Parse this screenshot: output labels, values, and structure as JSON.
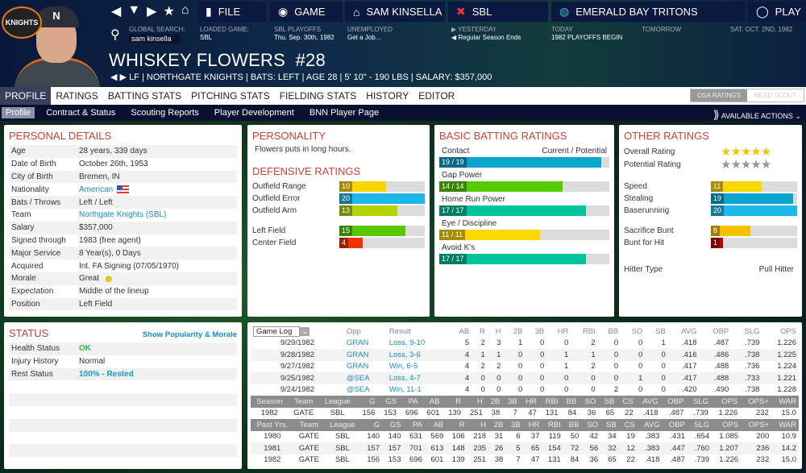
{
  "nav": {
    "file": "FILE",
    "game": "GAME",
    "manager": "SAM KINSELLA",
    "league": "SBL",
    "team": "EMERALD BAY TRITONS",
    "play": "PLAY"
  },
  "info": {
    "search_label": "GLOBAL SEARCH:",
    "search_value": "sam kinsella",
    "loaded_label": "LOADED GAME:",
    "loaded_value": "SBL",
    "playoffs_label": "SBL PLAYOFFS",
    "playoffs_date": "Thu. Sep. 30th, 1982",
    "unemployed_label": "UNEMPLOYED",
    "unemployed_value": "Get a Job...",
    "yesterday_label": "YESTERDAY",
    "yesterday_value": "Regular Season Ends",
    "today_label": "TODAY",
    "today_value": "1982 PLAYOFFS BEGIN",
    "tomorrow_label": "TOMORROW",
    "date": "SAT. OCT. 2ND, 1982"
  },
  "logo_text": "KNIGHTS",
  "cap_letter": "N",
  "player": {
    "name": "WHISKEY FLOWERS  #28",
    "sub": "LF | NORTHGATE KNIGHTS | BATS: LEFT | AGE 28 | 5' 10\" - 190 LBS | SALARY: $357,000"
  },
  "tabs": [
    "PROFILE",
    "RATINGS",
    "BATTING STATS",
    "PITCHING STATS",
    "FIELDING STATS",
    "HISTORY",
    "EDITOR"
  ],
  "rating_toggle": [
    "OSA RATINGS",
    "HEAD SCOUT"
  ],
  "subtabs": [
    "Profile",
    "Contract & Status",
    "Scouting Reports",
    "Player Development",
    "BNN Player Page"
  ],
  "available_actions": "AVAILABLE ACTIONS",
  "personal": {
    "title": "PERSONAL DETAILS",
    "rows": [
      [
        "Age",
        "28 years, 339 days"
      ],
      [
        "Date of Birth",
        "October 26th, 1953"
      ],
      [
        "City of Birth",
        "Bremen, IN"
      ],
      [
        "Nationality",
        "American"
      ],
      [
        "Bats / Throws",
        "Left / Left"
      ],
      [
        "Team",
        "Northgate Knights (SBL)"
      ],
      [
        "Salary",
        "$357,000"
      ],
      [
        "Signed through",
        "1983 (free agent)"
      ],
      [
        "Major Service",
        "8 Year(s), 0 Days"
      ],
      [
        "Acquired",
        "Int. FA Signing (07/05/1970)"
      ],
      [
        "Morale",
        "Great"
      ],
      [
        "Expectation",
        "Middle of the lineup"
      ],
      [
        "Position",
        "Left Field"
      ]
    ]
  },
  "personality": {
    "title": "PERSONALITY",
    "text": "Flowers puts in long hours."
  },
  "defensive": {
    "title": "DEFENSIVE RATINGS",
    "ratings": [
      {
        "label": "Outfield Range",
        "value": 10,
        "color": "#ffd500"
      },
      {
        "label": "Outfield Error",
        "value": 20,
        "color": "#1cb8e8"
      },
      {
        "label": "Outfield Arm",
        "value": 13,
        "color": "#b5d300"
      }
    ],
    "positions": [
      {
        "label": "Left Field",
        "value": 15,
        "color": "#55c800"
      },
      {
        "label": "Center Field",
        "value": 4,
        "color": "#f03200"
      }
    ]
  },
  "batting": {
    "title": "BASIC BATTING RATINGS",
    "header": "Current / Potential",
    "ratings": [
      {
        "label": "Contact",
        "text": "19 / 19",
        "value": 19,
        "color": "#0aa4cc"
      },
      {
        "label": "Gap Power",
        "text": "14 / 14",
        "value": 14,
        "color": "#55cc00"
      },
      {
        "label": "Home Run Power",
        "text": "17 / 17",
        "value": 17,
        "color": "#00c49c"
      },
      {
        "label": "Eye / Discipline",
        "text": "11 / 11",
        "value": 11,
        "color": "#ffd800"
      },
      {
        "label": "Avoid K's",
        "text": "17 / 17",
        "value": 17,
        "color": "#00c49c"
      }
    ]
  },
  "other": {
    "title": "OTHER RATINGS",
    "overall_label": "Overall Rating",
    "overall_stars": 5,
    "potential_label": "Potential Rating",
    "potential_stars": 0,
    "running": [
      {
        "label": "Speed",
        "value": 11,
        "color": "#ffd800"
      },
      {
        "label": "Stealing",
        "value": 19,
        "color": "#0aa4cc"
      },
      {
        "label": "Baserunning",
        "value": 20,
        "color": "#1cb8e8"
      }
    ],
    "bunting": [
      {
        "label": "Sacrifice Bunt",
        "value": 8,
        "color": "#f5c000"
      },
      {
        "label": "Bunt for Hit",
        "value": 1,
        "color": "#c00000"
      }
    ],
    "hitter_type_label": "Hitter Type",
    "hitter_type": "Pull Hitter"
  },
  "status": {
    "title": "STATUS",
    "link": "Show Popularity & Morale",
    "rows": [
      [
        "Health Status",
        "OK",
        "#2eb84a"
      ],
      [
        "Injury History",
        "Normal",
        "#333333"
      ],
      [
        "Rest Status",
        "100% - Rested",
        "#1a9ad0"
      ]
    ]
  },
  "gamelog": {
    "select": "Game Log",
    "headers": [
      "Opp",
      "Result",
      "AB",
      "R",
      "H",
      "2B",
      "3B",
      "HR",
      "RBI",
      "BB",
      "SO",
      "SB",
      "AVG",
      "OBP",
      "SLG",
      "OPS"
    ],
    "rows": [
      [
        "9/29/1982",
        "GRAN",
        "Loss, 9-10",
        "5",
        "2",
        "3",
        "1",
        "0",
        "0",
        "2",
        "0",
        "0",
        "1",
        ".418",
        ".487",
        ".739",
        "1.226"
      ],
      [
        "9/28/1982",
        "GRAN",
        "Loss, 3-6",
        "4",
        "1",
        "1",
        "0",
        "0",
        "1",
        "1",
        "0",
        "0",
        "0",
        ".416",
        ".486",
        ".738",
        "1.225"
      ],
      [
        "9/27/1982",
        "GRAN",
        "Win, 6-5",
        "4",
        "2",
        "2",
        "0",
        "0",
        "1",
        "2",
        "0",
        "0",
        "0",
        ".417",
        ".488",
        ".736",
        "1.224"
      ],
      [
        "9/25/1982",
        "@SEA",
        "Loss, 4-7",
        "4",
        "0",
        "0",
        "0",
        "0",
        "0",
        "0",
        "0",
        "1",
        "0",
        ".417",
        ".488",
        ".733",
        "1.221"
      ],
      [
        "9/24/1982",
        "@SEA",
        "Win, 11-1",
        "4",
        "0",
        "0",
        "0",
        "0",
        "0",
        "0",
        "2",
        "0",
        "0",
        ".420",
        ".490",
        ".738",
        "1.228"
      ]
    ]
  },
  "season": {
    "headers": [
      "Season",
      "Team",
      "League",
      "G",
      "GS",
      "PA",
      "AB",
      "R",
      "H",
      "2B",
      "3B",
      "HR",
      "RBI",
      "BB",
      "SO",
      "SB",
      "CS",
      "AVG",
      "OBP",
      "SLG",
      "OPS",
      "OPS+",
      "WAR"
    ],
    "rows": [
      [
        "1982",
        "GATE",
        "SBL",
        "156",
        "153",
        "696",
        "601",
        "139",
        "251",
        "38",
        "7",
        "47",
        "131",
        "84",
        "36",
        "65",
        "22",
        ".418",
        ".487",
        ".739",
        "1.226",
        "232",
        "15.0"
      ]
    ]
  },
  "past": {
    "headers": [
      "Past Yrs.",
      "Team",
      "League",
      "G",
      "GS",
      "PA",
      "AB",
      "R",
      "H",
      "2B",
      "3B",
      "HR",
      "RBI",
      "BB",
      "SO",
      "SB",
      "CS",
      "AVG",
      "OBP",
      "SLG",
      "OPS",
      "OPS+",
      "WAR"
    ],
    "rows": [
      [
        "1980",
        "GATE",
        "SBL",
        "140",
        "140",
        "631",
        "569",
        "106",
        "218",
        "31",
        "6",
        "37",
        "119",
        "50",
        "42",
        "34",
        "19",
        ".383",
        ".431",
        ".654",
        "1.085",
        "200",
        "10.9"
      ],
      [
        "1981",
        "GATE",
        "SBL",
        "157",
        "157",
        "701",
        "613",
        "148",
        "235",
        "26",
        "5",
        "65",
        "154",
        "72",
        "56",
        "32",
        "12",
        ".383",
        ".447",
        ".760",
        "1.207",
        "236",
        "14.2"
      ],
      [
        "1982",
        "GATE",
        "SBL",
        "156",
        "153",
        "696",
        "601",
        "139",
        "251",
        "38",
        "7",
        "47",
        "131",
        "84",
        "36",
        "65",
        "22",
        ".418",
        ".487",
        ".739",
        "1.226",
        "232",
        "15.0"
      ]
    ]
  }
}
